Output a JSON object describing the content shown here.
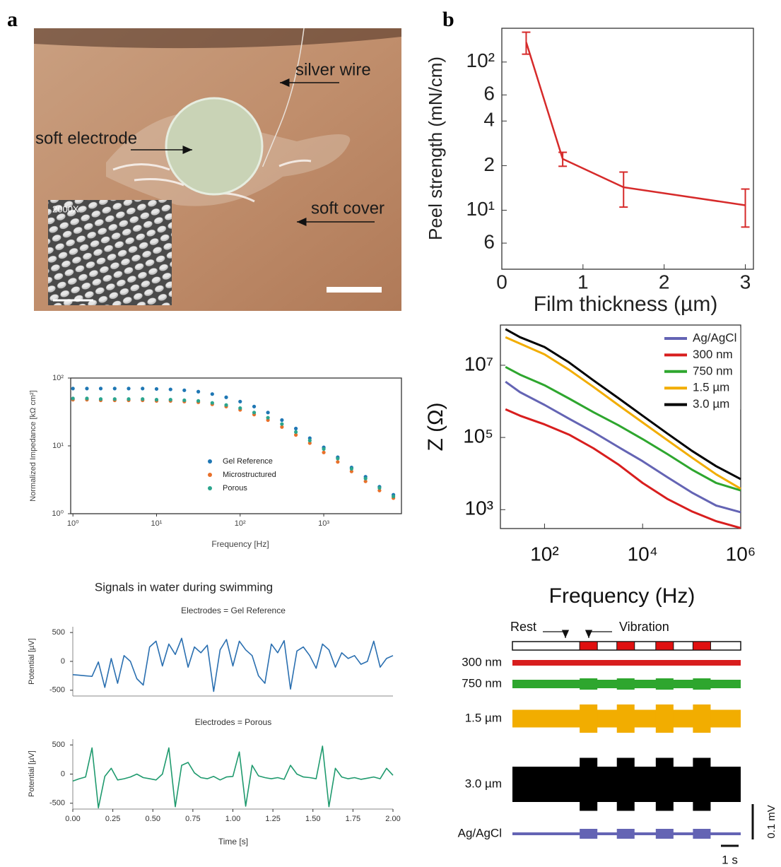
{
  "panel_labels": [
    "a",
    "b"
  ],
  "photo": {
    "labels": [
      "silver wire",
      "soft electrode",
      "soft cover"
    ],
    "inset_label": "2000X"
  },
  "chart_data": [
    {
      "type": "line",
      "x": [
        0.3,
        0.75,
        1.5,
        3
      ],
      "values": [
        136,
        22.2,
        14.3,
        10.8
      ],
      "errors": [
        23,
        2.4,
        3.8,
        3.1
      ],
      "color": "#d62a2a",
      "xlabel": "Film thickness (µm)",
      "ylabel": "Peel strength (mN/cm)",
      "xscale": "linear",
      "yscale": "log",
      "xlim": [
        0,
        3.1
      ],
      "ylim": [
        4,
        169
      ],
      "xticks": [
        0,
        1,
        2,
        3
      ],
      "yticks": [
        6,
        {
          "value": 10,
          "label": "10¹"
        },
        {
          "value": 20,
          "label": "2"
        },
        {
          "value": 40,
          "label": "4"
        },
        {
          "value": 60,
          "label": "6"
        },
        {
          "value": 100,
          "label": "10²"
        }
      ]
    },
    {
      "type": "scatter",
      "xscale": "log",
      "yscale": "log",
      "xlim": [
        0.94,
        8500
      ],
      "ylim": [
        1,
        100
      ],
      "xlabel": "Frequency [Hz]",
      "ylabel": "Normalized Impedance [kΩ cm²]",
      "xticks": [
        {
          "value": 1,
          "label": "10⁰"
        },
        {
          "value": 10,
          "label": "10¹"
        },
        {
          "value": 100,
          "label": "10²"
        },
        {
          "value": 1000,
          "label": "10³"
        }
      ],
      "yticks": [
        {
          "value": 1,
          "label": "10⁰"
        },
        {
          "value": 10,
          "label": "10¹"
        },
        {
          "value": 100,
          "label": "10²"
        }
      ],
      "x": [
        1,
        1.47,
        2.15,
        3.16,
        4.64,
        6.81,
        10,
        14.7,
        21.5,
        31.6,
        46.4,
        68.1,
        100,
        147,
        215,
        316,
        464,
        681,
        1000,
        1470,
        2150,
        3160,
        4640,
        6810
      ],
      "series": [
        {
          "name": "Gel Reference",
          "color": "#1f77b4",
          "values": [
            70,
            70,
            70,
            70,
            70,
            70,
            69,
            68,
            66,
            63,
            58,
            52,
            45,
            38,
            31,
            24,
            18,
            13,
            9.5,
            6.8,
            4.8,
            3.5,
            2.5,
            1.9
          ]
        },
        {
          "name": "Microstructured",
          "color": "#e8702a",
          "values": [
            48,
            48,
            47,
            47,
            47,
            47,
            46,
            46,
            45,
            44,
            41,
            38,
            34,
            29,
            24,
            19,
            14.5,
            11,
            8,
            5.8,
            4.2,
            3,
            2.2,
            1.7
          ]
        },
        {
          "name": "Porous",
          "color": "#2ca58d",
          "values": [
            50,
            50,
            49,
            49,
            49,
            49,
            48,
            48,
            47,
            46,
            43,
            40,
            36,
            31,
            26,
            21,
            16,
            12,
            9,
            6.5,
            4.6,
            3.3,
            2.4,
            1.8
          ]
        }
      ]
    },
    {
      "type": "line",
      "xscale": "log",
      "yscale": "log",
      "xlim": [
        12.6,
        1000000
      ],
      "ylim": [
        300,
        130000000
      ],
      "xlabel": "Frequency (Hz)",
      "ylabel": "Z (Ω)",
      "xticks": [
        {
          "value": 100,
          "label": "10²"
        },
        {
          "value": 10000,
          "label": "10⁴"
        },
        {
          "value": 1000000,
          "label": "10⁶"
        }
      ],
      "yticks": [
        {
          "value": 1000,
          "label": "10³"
        },
        {
          "value": 100000,
          "label": "10⁵"
        },
        {
          "value": 10000000,
          "label": "10⁷"
        }
      ],
      "x": [
        16,
        31.6,
        100,
        316,
        1000,
        3162,
        10000,
        31623,
        100000,
        316228,
        1000000
      ],
      "series": [
        {
          "name": "Ag/AgCl",
          "color": "#6464b4",
          "values": [
            3500000,
            1800000,
            800000,
            330000,
            140000,
            55000,
            22000,
            8000,
            3000,
            1300,
            850
          ]
        },
        {
          "name": "300 nm",
          "color": "#d81e1e",
          "values": [
            600000,
            400000,
            230000,
            120000,
            50000,
            18000,
            5500,
            2000,
            900,
            480,
            310
          ]
        },
        {
          "name": "750 nm",
          "color": "#2ea62e",
          "values": [
            9000000,
            5500000,
            2800000,
            1200000,
            500000,
            220000,
            90000,
            35000,
            13000,
            5500,
            3400
          ]
        },
        {
          "name": "1.5 µm",
          "color": "#f2ad00",
          "values": [
            60000000,
            40000000,
            20000000,
            7500000,
            2500000,
            800000,
            260000,
            85000,
            28000,
            9500,
            3800
          ]
        },
        {
          "name": "3.0 µm",
          "color": "#000000",
          "values": [
            100000000,
            60000000,
            32000000,
            12000000,
            3800000,
            1250000,
            400000,
            130000,
            43000,
            16000,
            7000
          ]
        }
      ]
    },
    {
      "type": "line",
      "title": "Signals in water during swimming",
      "subtitle": "Electrodes = Gel Reference",
      "color": "#2a6fb0",
      "ylabel": "Potential [µV]",
      "xlim": [
        0,
        2
      ],
      "ylim": [
        -600,
        600
      ],
      "yticks": [
        -500,
        0,
        500
      ],
      "x": [
        0,
        0.04,
        0.08,
        0.12,
        0.16,
        0.2,
        0.24,
        0.28,
        0.32,
        0.36,
        0.4,
        0.44,
        0.48,
        0.52,
        0.56,
        0.6,
        0.64,
        0.68,
        0.72,
        0.76,
        0.8,
        0.84,
        0.88,
        0.92,
        0.96,
        1,
        1.04,
        1.08,
        1.12,
        1.16,
        1.2,
        1.24,
        1.28,
        1.32,
        1.36,
        1.4,
        1.44,
        1.48,
        1.52,
        1.56,
        1.6,
        1.64,
        1.68,
        1.72,
        1.76,
        1.8,
        1.84,
        1.88,
        1.92,
        1.96,
        2
      ],
      "values": [
        -230,
        -240,
        -250,
        -260,
        -10,
        -450,
        50,
        -380,
        100,
        0,
        -300,
        -410,
        250,
        350,
        -80,
        300,
        120,
        400,
        -100,
        250,
        150,
        280,
        -520,
        200,
        380,
        -80,
        350,
        200,
        100,
        -250,
        -380,
        300,
        150,
        360,
        -480,
        180,
        250,
        100,
        -120,
        300,
        200,
        -100,
        150,
        50,
        100,
        -50,
        0,
        350,
        -100,
        50,
        100
      ]
    },
    {
      "type": "line",
      "subtitle": "Electrodes = Porous",
      "color": "#1f9a6e",
      "ylabel": "Potential [µV]",
      "xlabel": "Time [s]",
      "xlim": [
        0,
        2
      ],
      "ylim": [
        -600,
        600
      ],
      "yticks": [
        -500,
        0,
        500
      ],
      "xticks": [
        {
          "value": 0,
          "label": "0.00"
        },
        {
          "value": 0.25,
          "label": "0.25"
        },
        {
          "value": 0.5,
          "label": "0.50"
        },
        {
          "value": 0.75,
          "label": "0.75"
        },
        {
          "value": 1,
          "label": "1.00"
        },
        {
          "value": 1.25,
          "label": "1.25"
        },
        {
          "value": 1.5,
          "label": "1.50"
        },
        {
          "value": 1.75,
          "label": "1.75"
        },
        {
          "value": 2,
          "label": "2.00"
        }
      ],
      "x": [
        0,
        0.04,
        0.08,
        0.12,
        0.16,
        0.2,
        0.24,
        0.28,
        0.32,
        0.36,
        0.4,
        0.44,
        0.48,
        0.52,
        0.56,
        0.6,
        0.64,
        0.68,
        0.72,
        0.76,
        0.8,
        0.84,
        0.88,
        0.92,
        0.96,
        1,
        1.04,
        1.08,
        1.12,
        1.16,
        1.2,
        1.24,
        1.28,
        1.32,
        1.36,
        1.4,
        1.44,
        1.48,
        1.52,
        1.56,
        1.6,
        1.64,
        1.68,
        1.72,
        1.76,
        1.8,
        1.84,
        1.88,
        1.92,
        1.96,
        2
      ],
      "values": [
        -120,
        -80,
        -50,
        450,
        -580,
        -40,
        100,
        -100,
        -80,
        -50,
        0,
        -60,
        -80,
        -100,
        0,
        450,
        -560,
        150,
        200,
        20,
        -60,
        -80,
        -40,
        -100,
        -50,
        -40,
        380,
        -550,
        150,
        -30,
        -60,
        -80,
        -60,
        -90,
        150,
        0,
        -50,
        -60,
        -80,
        480,
        -560,
        100,
        -50,
        -80,
        -60,
        -90,
        -70,
        -50,
        -80,
        100,
        -20
      ]
    },
    {
      "type": "traces",
      "rest_label": "Rest",
      "vibration_label": "Vibration",
      "vibration_color": "#e01010",
      "xlim": [
        0,
        12.9
      ],
      "vibration_intervals": [
        [
          3.8,
          4.8
        ],
        [
          5.9,
          6.9
        ],
        [
          8.1,
          9.1
        ],
        [
          10.2,
          11.2
        ]
      ],
      "series": [
        {
          "name": "300 nm",
          "color": "#d81e1e",
          "rest": 0.008,
          "vibration": 0.008
        },
        {
          "name": "750 nm",
          "color": "#2ea62e",
          "rest": 0.012,
          "vibration": 0.016
        },
        {
          "name": "1.5 µm",
          "color": "#f2ad00",
          "rest": 0.025,
          "vibration": 0.04
        },
        {
          "name": "3.0 µm",
          "color": "#000000",
          "rest": 0.05,
          "vibration": 0.075
        },
        {
          "name": "Ag/AgCl",
          "color": "#6464b4",
          "rest": 0.004,
          "vibration": 0.014
        }
      ],
      "scale_bars": [
        {
          "value": 0.1,
          "label": "0.1 mV"
        },
        {
          "value": 1,
          "label": "1 s"
        }
      ]
    }
  ]
}
